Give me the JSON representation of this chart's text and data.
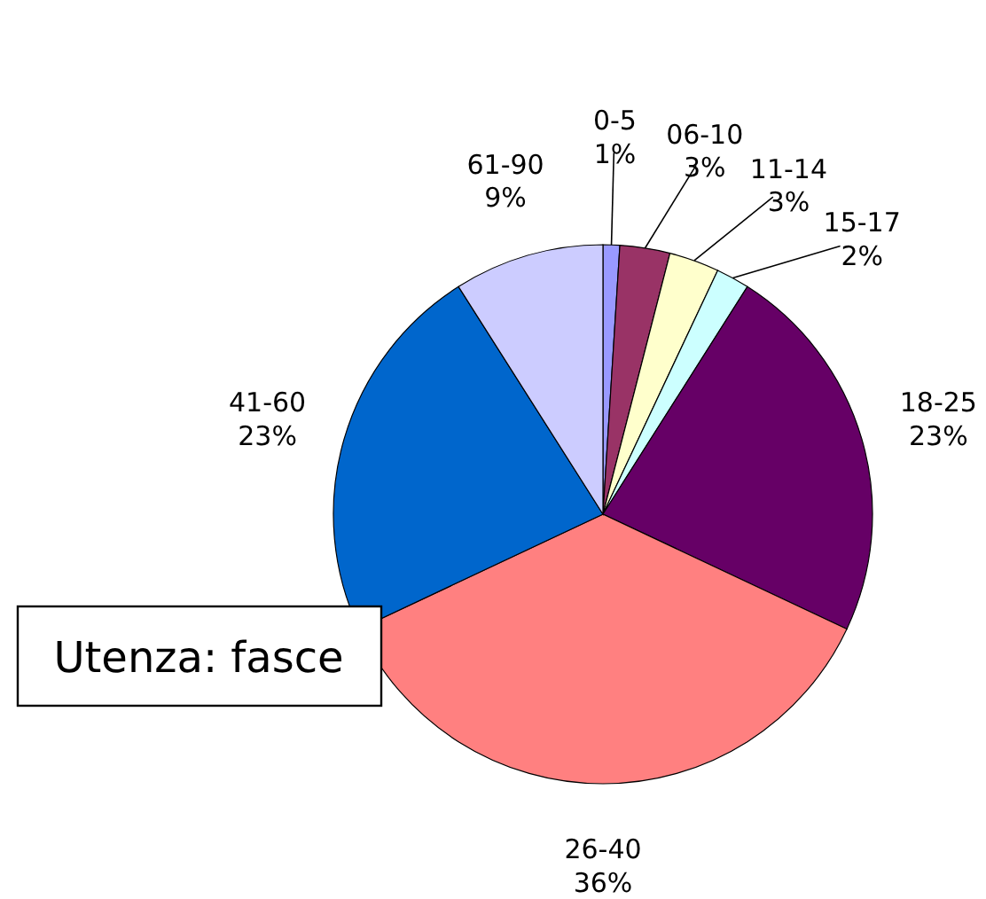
{
  "chart_data": {
    "type": "pie",
    "title": "Utenza: fasce",
    "categories": [
      "0-5",
      "06-10",
      "11-14",
      "15-17",
      "18-25",
      "26-40",
      "41-60",
      "61-90"
    ],
    "values": [
      1,
      3,
      3,
      2,
      23,
      36,
      23,
      9
    ],
    "colors": [
      "#9999ff",
      "#993366",
      "#ffffcc",
      "#ccffff",
      "#660066",
      "#ff8080",
      "#0066cc",
      "#ccccff"
    ],
    "value_labels": [
      "1%",
      "3%",
      "3%",
      "2%",
      "23%",
      "36%",
      "23%",
      "9%"
    ]
  }
}
